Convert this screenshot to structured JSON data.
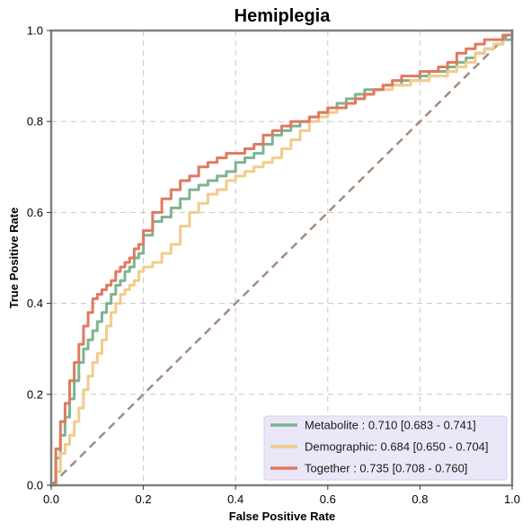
{
  "chart_data": {
    "type": "line",
    "title": "Hemiplegia",
    "xlabel": "False Positive Rate",
    "ylabel": "True Positive Rate",
    "xlim": [
      0,
      1
    ],
    "ylim": [
      0,
      1
    ],
    "x_ticks": [
      "0.0",
      "0.2",
      "0.4",
      "0.6",
      "0.8",
      "1.0"
    ],
    "y_ticks": [
      "0.0",
      "0.2",
      "0.4",
      "0.6",
      "0.8",
      "1.0"
    ],
    "grid": true,
    "legend_position": "bottom-right",
    "diagonal": {
      "color": "#a68b7e",
      "x": [
        0,
        1
      ],
      "y": [
        0,
        1
      ]
    },
    "series": [
      {
        "name": "Metabolite",
        "legend_label": "Metabolite     : 0.710 [0.683 - 0.741]",
        "color": "#7fb392",
        "x": [
          0,
          0.01,
          0.02,
          0.03,
          0.04,
          0.05,
          0.06,
          0.07,
          0.08,
          0.09,
          0.1,
          0.11,
          0.12,
          0.13,
          0.14,
          0.15,
          0.16,
          0.17,
          0.18,
          0.19,
          0.2,
          0.22,
          0.24,
          0.26,
          0.28,
          0.3,
          0.32,
          0.34,
          0.36,
          0.38,
          0.4,
          0.42,
          0.44,
          0.46,
          0.48,
          0.5,
          0.52,
          0.54,
          0.56,
          0.58,
          0.6,
          0.62,
          0.64,
          0.66,
          0.68,
          0.7,
          0.72,
          0.74,
          0.76,
          0.78,
          0.8,
          0.82,
          0.84,
          0.86,
          0.88,
          0.9,
          0.92,
          0.94,
          0.96,
          0.98,
          1.0
        ],
        "y": [
          0,
          0.06,
          0.11,
          0.15,
          0.19,
          0.23,
          0.27,
          0.3,
          0.32,
          0.34,
          0.36,
          0.38,
          0.4,
          0.42,
          0.44,
          0.45,
          0.47,
          0.48,
          0.5,
          0.51,
          0.55,
          0.58,
          0.59,
          0.61,
          0.63,
          0.65,
          0.66,
          0.67,
          0.68,
          0.69,
          0.71,
          0.72,
          0.73,
          0.75,
          0.77,
          0.78,
          0.79,
          0.8,
          0.81,
          0.82,
          0.83,
          0.84,
          0.85,
          0.86,
          0.87,
          0.87,
          0.88,
          0.88,
          0.89,
          0.89,
          0.9,
          0.91,
          0.91,
          0.92,
          0.93,
          0.94,
          0.95,
          0.96,
          0.97,
          0.98,
          1.0
        ]
      },
      {
        "name": "Demographic",
        "legend_label": "Demographic: 0.684 [0.650 - 0.704]",
        "color": "#f2cb8c",
        "x": [
          0,
          0.01,
          0.02,
          0.03,
          0.04,
          0.05,
          0.06,
          0.07,
          0.08,
          0.09,
          0.1,
          0.11,
          0.12,
          0.13,
          0.14,
          0.15,
          0.16,
          0.17,
          0.18,
          0.19,
          0.2,
          0.22,
          0.24,
          0.26,
          0.28,
          0.3,
          0.32,
          0.34,
          0.36,
          0.38,
          0.4,
          0.42,
          0.44,
          0.46,
          0.48,
          0.5,
          0.52,
          0.54,
          0.56,
          0.58,
          0.6,
          0.62,
          0.64,
          0.66,
          0.68,
          0.7,
          0.72,
          0.74,
          0.76,
          0.78,
          0.8,
          0.82,
          0.84,
          0.86,
          0.88,
          0.9,
          0.92,
          0.94,
          0.96,
          0.98,
          1.0
        ],
        "y": [
          0,
          0.03,
          0.07,
          0.09,
          0.11,
          0.14,
          0.17,
          0.21,
          0.24,
          0.27,
          0.29,
          0.32,
          0.35,
          0.38,
          0.4,
          0.42,
          0.43,
          0.44,
          0.45,
          0.47,
          0.48,
          0.49,
          0.51,
          0.53,
          0.57,
          0.6,
          0.62,
          0.64,
          0.65,
          0.67,
          0.68,
          0.69,
          0.7,
          0.71,
          0.72,
          0.74,
          0.76,
          0.78,
          0.8,
          0.81,
          0.82,
          0.83,
          0.84,
          0.85,
          0.86,
          0.87,
          0.87,
          0.88,
          0.88,
          0.89,
          0.89,
          0.9,
          0.9,
          0.91,
          0.92,
          0.93,
          0.95,
          0.96,
          0.97,
          0.99,
          1.0
        ]
      },
      {
        "name": "Together",
        "legend_label": "Together       : 0.735 [0.708 - 0.760]",
        "color": "#e07a5f",
        "x": [
          0,
          0.01,
          0.02,
          0.03,
          0.04,
          0.05,
          0.06,
          0.07,
          0.08,
          0.09,
          0.1,
          0.11,
          0.12,
          0.13,
          0.14,
          0.15,
          0.16,
          0.17,
          0.18,
          0.19,
          0.2,
          0.22,
          0.24,
          0.26,
          0.28,
          0.3,
          0.32,
          0.34,
          0.36,
          0.38,
          0.4,
          0.42,
          0.44,
          0.46,
          0.48,
          0.5,
          0.52,
          0.54,
          0.56,
          0.58,
          0.6,
          0.62,
          0.64,
          0.66,
          0.68,
          0.7,
          0.72,
          0.74,
          0.76,
          0.78,
          0.8,
          0.82,
          0.84,
          0.86,
          0.88,
          0.9,
          0.92,
          0.94,
          0.96,
          0.98,
          1.0
        ],
        "y": [
          0,
          0.08,
          0.14,
          0.18,
          0.23,
          0.27,
          0.31,
          0.35,
          0.38,
          0.41,
          0.42,
          0.43,
          0.44,
          0.45,
          0.47,
          0.48,
          0.49,
          0.5,
          0.52,
          0.53,
          0.56,
          0.6,
          0.63,
          0.65,
          0.67,
          0.68,
          0.7,
          0.71,
          0.72,
          0.73,
          0.73,
          0.74,
          0.75,
          0.77,
          0.78,
          0.79,
          0.8,
          0.8,
          0.81,
          0.82,
          0.83,
          0.83,
          0.84,
          0.85,
          0.86,
          0.87,
          0.88,
          0.89,
          0.9,
          0.9,
          0.91,
          0.91,
          0.92,
          0.93,
          0.95,
          0.96,
          0.97,
          0.98,
          0.98,
          0.99,
          1.0
        ]
      }
    ]
  }
}
